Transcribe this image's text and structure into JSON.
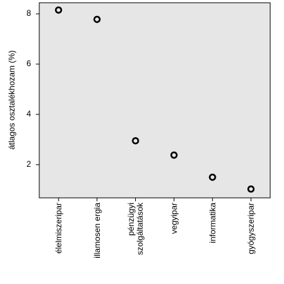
{
  "chart_data": {
    "type": "scatter",
    "ylabel": "átlagos osztalékhozam (%)",
    "categories": [
      "élelmiszeripar",
      "illamosen ergia",
      "pénzügyi\nszolgáltatások",
      "vegyipar",
      "informatika",
      "gyógyszeripar"
    ],
    "values": [
      8.15,
      7.78,
      2.95,
      2.38,
      1.5,
      1.03
    ],
    "color": "#000000",
    "ylim": [
      0.68,
      8.44
    ],
    "yticks": [
      2,
      4,
      6,
      8
    ]
  }
}
